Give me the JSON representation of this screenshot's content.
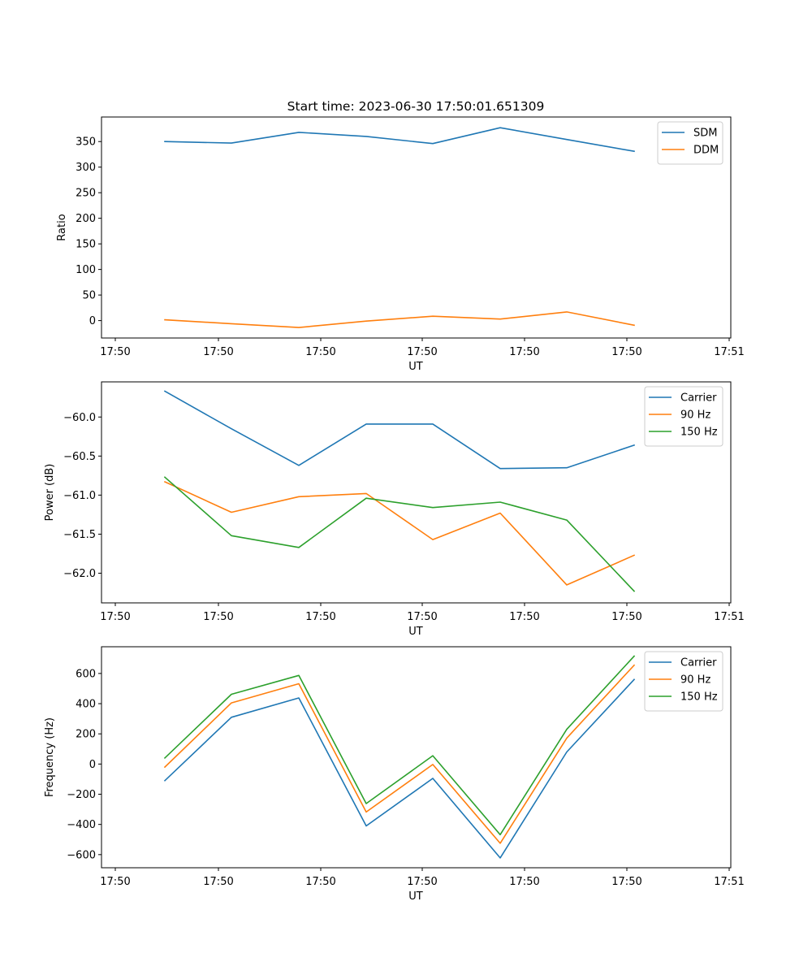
{
  "figure_title": "Start time: 2023-06-30 17:50:01.651309",
  "colors": {
    "blue": "#1f77b4",
    "orange": "#ff7f0e",
    "green": "#2ca02c"
  },
  "chart_data": [
    {
      "type": "line",
      "title": "Start time: 2023-06-30 17:50:01.651309",
      "xlabel": "UT",
      "ylabel": "Ratio",
      "x_tick_labels": [
        "17:50",
        "17:50",
        "17:50",
        "17:50",
        "17:50",
        "17:50",
        "17:51"
      ],
      "y_ticks": [
        0,
        50,
        100,
        150,
        200,
        250,
        300,
        350
      ],
      "ylim": [
        -34,
        398
      ],
      "legend_position": "upper right",
      "grid": false,
      "series": [
        {
          "name": "SDM",
          "color": "#1f77b4",
          "values": [
            350,
            347,
            368,
            360,
            346,
            377,
            354,
            331
          ]
        },
        {
          "name": "DDM",
          "color": "#ff7f0e",
          "values": [
            1.5,
            -6,
            -13.5,
            -1,
            8.5,
            3,
            17,
            -9
          ]
        }
      ]
    },
    {
      "type": "line",
      "title": "",
      "xlabel": "UT",
      "ylabel": "Power (dB)",
      "x_tick_labels": [
        "17:50",
        "17:50",
        "17:50",
        "17:50",
        "17:50",
        "17:50",
        "17:51"
      ],
      "y_ticks": [
        -62.0,
        -61.5,
        -61.0,
        -60.5,
        -60.0
      ],
      "y_tick_labels": [
        "−62.0",
        "−61.5",
        "−61.0",
        "−60.5",
        "−60.0"
      ],
      "ylim": [
        -62.38,
        -59.55
      ],
      "legend_position": "upper right",
      "grid": false,
      "series": [
        {
          "name": "Carrier",
          "color": "#1f77b4",
          "values": [
            -59.67,
            -60.15,
            -60.62,
            -60.09,
            -60.09,
            -60.66,
            -60.65,
            -60.36
          ]
        },
        {
          "name": "90 Hz",
          "color": "#ff7f0e",
          "values": [
            -60.83,
            -61.22,
            -61.02,
            -60.98,
            -61.57,
            -61.23,
            -62.15,
            -61.77
          ]
        },
        {
          "name": "150 Hz",
          "color": "#2ca02c",
          "values": [
            -60.77,
            -61.52,
            -61.67,
            -61.04,
            -61.16,
            -61.09,
            -61.32,
            -62.23
          ]
        }
      ]
    },
    {
      "type": "line",
      "title": "",
      "xlabel": "UT",
      "ylabel": "Frequency (Hz)",
      "x_tick_labels": [
        "17:50",
        "17:50",
        "17:50",
        "17:50",
        "17:50",
        "17:50",
        "17:51"
      ],
      "y_ticks": [
        -600,
        -400,
        -200,
        0,
        200,
        400,
        600
      ],
      "y_tick_labels": [
        "−600",
        "−400",
        "−200",
        "0",
        "200",
        "400",
        "600"
      ],
      "ylim": [
        -687,
        777
      ],
      "legend_position": "upper right",
      "grid": false,
      "series": [
        {
          "name": "Carrier",
          "color": "#1f77b4",
          "values": [
            -110,
            310,
            438,
            -410,
            -95,
            -622,
            80,
            560
          ]
        },
        {
          "name": "90 Hz",
          "color": "#ff7f0e",
          "values": [
            -20,
            405,
            532,
            -318,
            -3,
            -525,
            172,
            655
          ]
        },
        {
          "name": "150 Hz",
          "color": "#2ca02c",
          "values": [
            40,
            462,
            587,
            -262,
            55,
            -468,
            230,
            715
          ]
        }
      ]
    }
  ]
}
